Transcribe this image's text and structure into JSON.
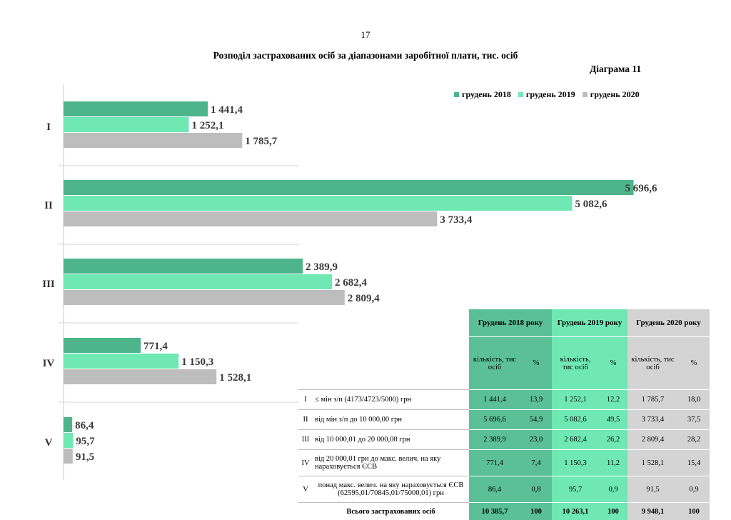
{
  "page_number": "17",
  "title": "Розподіл застрахованих осіб за діапазонами заробітної плати, тис. осіб",
  "diagram_label": "Діаграма 11",
  "colors": {
    "s2018": "#4db48c",
    "s2019": "#6fe8b4",
    "s2020": "#bdbdbd"
  },
  "chart_data": {
    "type": "bar",
    "orientation": "horizontal",
    "categories": [
      "I",
      "II",
      "III",
      "IV",
      "V"
    ],
    "series": [
      {
        "name": "грудень 2018",
        "values": [
          1441.4,
          5696.6,
          2389.9,
          771.4,
          86.4
        ],
        "labels": [
          "1 441,4",
          "5 696,6",
          "2 389,9",
          "771,4",
          "86,4"
        ]
      },
      {
        "name": "грудень 2019",
        "values": [
          1252.1,
          5082.6,
          2682.4,
          1150.3,
          95.7
        ],
        "labels": [
          "1 252,1",
          "5 082,6",
          "2 682,4",
          "1 150,3",
          "95,7"
        ]
      },
      {
        "name": "грудень 2020",
        "values": [
          1785.7,
          3733.4,
          2809.4,
          1528.1,
          91.5
        ],
        "labels": [
          "1 785,7",
          "3 733,4",
          "2 809,4",
          "1 528,1",
          "91,5"
        ]
      }
    ],
    "xlim": [
      0,
      5800
    ],
    "legend_position": "top-right"
  },
  "table": {
    "year_headers": [
      "Грудень 2018 року",
      "Грудень 2019 року",
      "Грудень 2020 року"
    ],
    "sub_headers": {
      "qty": "кількість, тис осіб",
      "pct": "%"
    },
    "rows": [
      {
        "num": "I",
        "desc": "≤ мін з/п (4173/4723/5000) грн",
        "v": [
          "1 441,4",
          "13,9",
          "1 252,1",
          "12,2",
          "1 785,7",
          "18,0"
        ]
      },
      {
        "num": "II",
        "desc": "від мін з/п до 10 000,00 грн",
        "v": [
          "5 696,6",
          "54,9",
          "5 082,6",
          "49,5",
          "3 733,4",
          "37,5"
        ]
      },
      {
        "num": "III",
        "desc": "від 10 000,01 до 20 000,00 грн",
        "v": [
          "2 389,9",
          "23,0",
          "2 682,4",
          "26,2",
          "2 809,4",
          "28,2"
        ]
      },
      {
        "num": "IV",
        "desc": "від 20 000,01 грн до макс. велич. на яку нараховується ЄСВ",
        "v": [
          "771,4",
          "7,4",
          "1 150,3",
          "11,2",
          "1 528,1",
          "15,4"
        ]
      },
      {
        "num": "V",
        "desc": "понад макс. велич. на яку нараховується ЄСВ (62595,01/70845,01/75000,01) грн",
        "v": [
          "86,4",
          "0,8",
          "95,7",
          "0,9",
          "91,5",
          "0,9"
        ]
      }
    ],
    "total": {
      "label": "Всього застрахованих осіб",
      "v": [
        "10 385,7",
        "100",
        "10 263,1",
        "100",
        "9 948,1",
        "100"
      ]
    }
  }
}
